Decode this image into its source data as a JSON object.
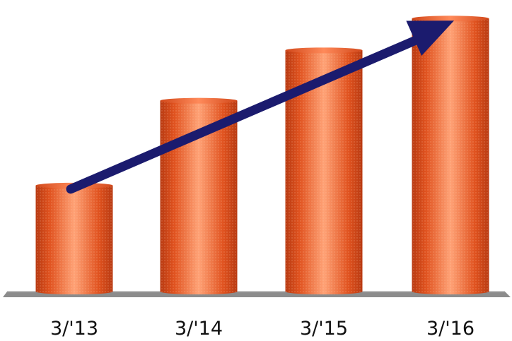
{
  "chart_data": {
    "type": "bar",
    "bar_shape": "cylinder",
    "categories": [
      "3/'13",
      "3/'14",
      "3/'15",
      "3/'16"
    ],
    "values": [
      40,
      72,
      91,
      103
    ],
    "ylim": [
      0,
      110
    ],
    "title": "",
    "xlabel": "",
    "ylabel": "",
    "grid": false,
    "legend": "none",
    "bar_color": "#F0602A",
    "bar_highlight": "#FFA276",
    "bar_shadow": "#B83A12",
    "baseline_color": "#8C8C8C",
    "annotation": {
      "type": "trend-arrow",
      "from_category": "3/'13",
      "to_category": "3/'16",
      "color": "#1B1B6E"
    }
  }
}
